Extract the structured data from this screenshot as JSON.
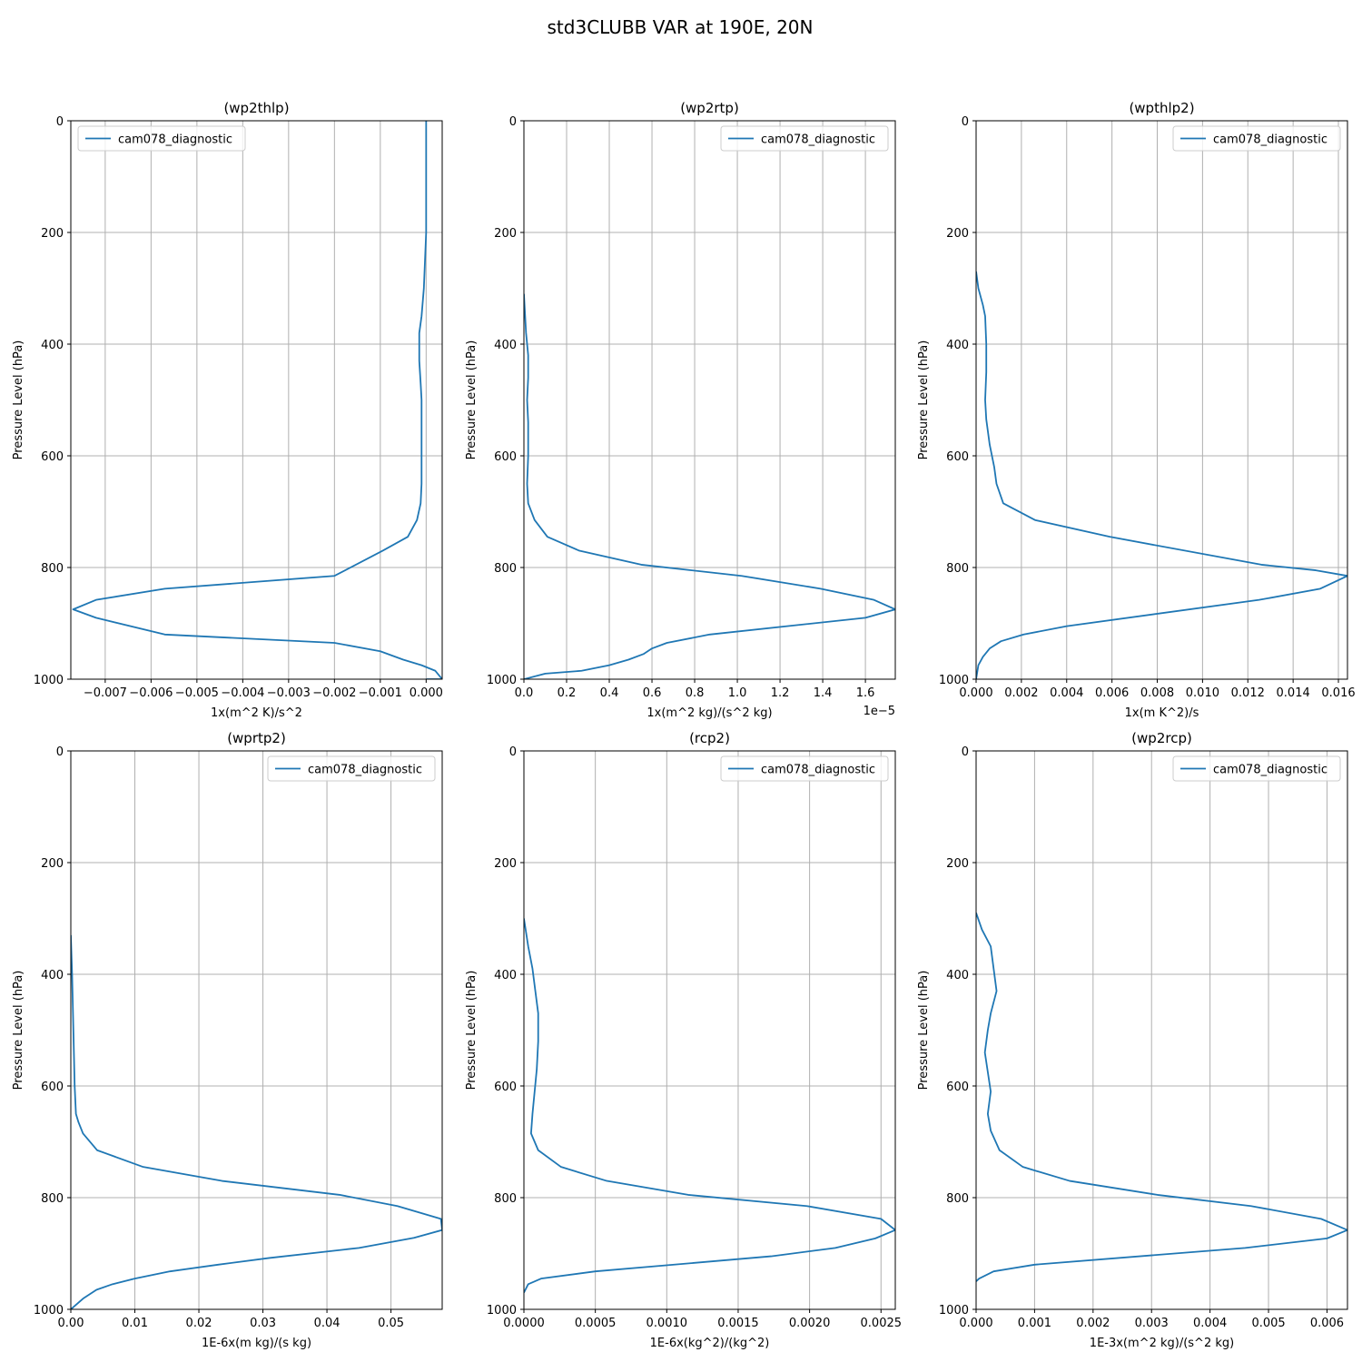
{
  "figure": {
    "title": "std3CLUBB VAR at 190E, 20N"
  },
  "colors": {
    "line": "#1f77b4",
    "grid": "#b0b0b0",
    "axes": "#000000"
  },
  "chart_data": [
    {
      "type": "line",
      "title": "(wp2thlp)",
      "xlabel": "1x(m^2 K)/s^2",
      "ylabel": "Pressure Level (hPa)",
      "xlim": [
        -0.00775,
        0.00035
      ],
      "ylim": [
        1000,
        0
      ],
      "xticks": [
        -0.007,
        -0.006,
        -0.005,
        -0.004,
        -0.003,
        -0.002,
        -0.001,
        0.0
      ],
      "xtick_labels": [
        "−0.007",
        "−0.006",
        "−0.005",
        "−0.004",
        "−0.003",
        "−0.002",
        "−0.001",
        "0.000"
      ],
      "yticks": [
        0,
        200,
        400,
        600,
        800,
        1000
      ],
      "ytick_labels": [
        "0",
        "200",
        "400",
        "600",
        "800",
        "1000"
      ],
      "offset_text": "",
      "grid": true,
      "legend_loc": "upper left",
      "series": [
        {
          "name": "cam078_diagnostic",
          "x": [
            0.0,
            0.0,
            0.0,
            0.0,
            0.0,
            -5e-05,
            -0.0001,
            -0.00015,
            -0.00015,
            -0.00012,
            -0.0001,
            -0.0001,
            -0.0001,
            -0.0001,
            -0.00012,
            -0.0002,
            -0.0004,
            -0.00095,
            -0.002,
            -0.0057,
            -0.0072,
            -0.0077,
            -0.0072,
            -0.0057,
            -0.002,
            -0.001,
            -0.0005,
            -0.0001,
            0.0002,
            0.00035,
            0.0
          ],
          "y": [
            0,
            50,
            100,
            150,
            200,
            300,
            350,
            380,
            430,
            470,
            500,
            540,
            600,
            650,
            685,
            715,
            745,
            770,
            815,
            838,
            858,
            875,
            890,
            920,
            935,
            950,
            965,
            975,
            985,
            1000,
            1000
          ]
        }
      ]
    },
    {
      "type": "line",
      "title": "(wp2rtp)",
      "xlabel": "1x(m^2 kg)/(s^2 kg)",
      "ylabel": "Pressure Level (hPa)",
      "xlim": [
        0.0,
        1.74
      ],
      "ylim": [
        1000,
        0
      ],
      "xticks": [
        0.0,
        0.2,
        0.4,
        0.6,
        0.8,
        1.0,
        1.2,
        1.4,
        1.6
      ],
      "xtick_labels": [
        "0.0",
        "0.2",
        "0.4",
        "0.6",
        "0.8",
        "1.0",
        "1.2",
        "1.4",
        "1.6"
      ],
      "yticks": [
        0,
        200,
        400,
        600,
        800,
        1000
      ],
      "ytick_labels": [
        "0",
        "200",
        "400",
        "600",
        "800",
        "1000"
      ],
      "offset_text": "1e−5",
      "grid": true,
      "legend_loc": "upper right",
      "series": [
        {
          "name": "cam078_diagnostic",
          "x": [
            0.0,
            0.01,
            0.02,
            0.02,
            0.015,
            0.02,
            0.02,
            0.015,
            0.02,
            0.05,
            0.11,
            0.26,
            0.55,
            1.02,
            1.39,
            1.64,
            1.74,
            1.6,
            0.87,
            0.67,
            0.6,
            0.56,
            0.49,
            0.4,
            0.27,
            0.1,
            0.0
          ],
          "y": [
            310,
            380,
            420,
            460,
            500,
            540,
            600,
            650,
            685,
            715,
            745,
            770,
            795,
            815,
            838,
            858,
            875,
            890,
            920,
            935,
            945,
            955,
            965,
            975,
            985,
            990,
            1000
          ]
        }
      ]
    },
    {
      "type": "line",
      "title": "(wpthlp2)",
      "xlabel": "1x(m K^2)/s",
      "ylabel": "Pressure Level (hPa)",
      "xlim": [
        0.0,
        0.0164
      ],
      "ylim": [
        1000,
        0
      ],
      "xticks": [
        0.0,
        0.002,
        0.004,
        0.006,
        0.008,
        0.01,
        0.012,
        0.014,
        0.016
      ],
      "xtick_labels": [
        "0.000",
        "0.002",
        "0.004",
        "0.006",
        "0.008",
        "0.010",
        "0.012",
        "0.014",
        "0.016"
      ],
      "yticks": [
        0,
        200,
        400,
        600,
        800,
        1000
      ],
      "ytick_labels": [
        "0",
        "200",
        "400",
        "600",
        "800",
        "1000"
      ],
      "offset_text": "",
      "grid": true,
      "legend_loc": "upper right",
      "series": [
        {
          "name": "cam078_diagnostic",
          "x": [
            0.0,
            0.0001,
            0.0003,
            0.0004,
            0.00045,
            0.00045,
            0.0004,
            0.00045,
            0.0006,
            0.0008,
            0.0009,
            0.0012,
            0.0026,
            0.0059,
            0.0126,
            0.015,
            0.0164,
            0.0152,
            0.0125,
            0.004,
            0.0021,
            0.0011,
            0.0006,
            0.0003,
            0.0001,
            0.0
          ],
          "y": [
            270,
            300,
            330,
            350,
            400,
            450,
            500,
            535,
            580,
            620,
            650,
            685,
            715,
            745,
            795,
            805,
            815,
            838,
            858,
            905,
            920,
            932,
            945,
            960,
            975,
            1000
          ]
        }
      ]
    },
    {
      "type": "line",
      "title": "(wprtp2)",
      "xlabel": "1E-6x(m kg)/(s kg)",
      "ylabel": "Pressure Level (hPa)",
      "xlim": [
        0.0,
        0.058
      ],
      "ylim": [
        1000,
        0
      ],
      "xticks": [
        0.0,
        0.01,
        0.02,
        0.03,
        0.04,
        0.05
      ],
      "xtick_labels": [
        "0.00",
        "0.01",
        "0.02",
        "0.03",
        "0.04",
        "0.05"
      ],
      "yticks": [
        0,
        200,
        400,
        600,
        800,
        1000
      ],
      "ytick_labels": [
        "0",
        "200",
        "400",
        "600",
        "800",
        "1000"
      ],
      "offset_text": "",
      "grid": true,
      "legend_loc": "upper right",
      "series": [
        {
          "name": "cam078_diagnostic",
          "x": [
            0.0,
            0.0002,
            0.0004,
            0.0006,
            0.0008,
            0.0012,
            0.0019,
            0.0041,
            0.0113,
            0.0236,
            0.042,
            0.051,
            0.0578,
            0.058,
            0.0536,
            0.045,
            0.031,
            0.023,
            0.0155,
            0.01,
            0.0065,
            0.004,
            0.002,
            0.0
          ],
          "y": [
            330,
            400,
            500,
            600,
            650,
            665,
            685,
            715,
            745,
            770,
            795,
            815,
            838,
            858,
            872,
            890,
            908,
            920,
            932,
            945,
            955,
            965,
            980,
            1000
          ]
        }
      ]
    },
    {
      "type": "line",
      "title": "(rcp2)",
      "xlabel": "1E-6x(kg^2)/(kg^2)",
      "ylabel": "Pressure Level (hPa)",
      "xlim": [
        0.0,
        0.0026
      ],
      "ylim": [
        1000,
        0
      ],
      "xticks": [
        0.0,
        0.0005,
        0.001,
        0.0015,
        0.002,
        0.0025
      ],
      "xtick_labels": [
        "0.0000",
        "0.0005",
        "0.0010",
        "0.0015",
        "0.0020",
        "0.0025"
      ],
      "yticks": [
        0,
        200,
        400,
        600,
        800,
        1000
      ],
      "ytick_labels": [
        "0",
        "200",
        "400",
        "600",
        "800",
        "1000"
      ],
      "offset_text": "",
      "grid": true,
      "legend_loc": "upper right",
      "series": [
        {
          "name": "cam078_diagnostic",
          "x": [
            0.0,
            3e-05,
            6e-05,
            8e-05,
            0.0001,
            0.0001,
            9e-05,
            6e-05,
            5e-05,
            0.0001,
            0.00026,
            0.00058,
            0.00115,
            0.00198,
            0.0025,
            0.0026,
            0.00246,
            0.00218,
            0.00173,
            0.0005,
            0.00012,
            3e-05,
            0.0
          ],
          "y": [
            300,
            350,
            390,
            430,
            470,
            520,
            570,
            650,
            685,
            715,
            745,
            770,
            795,
            815,
            838,
            858,
            873,
            890,
            905,
            932,
            945,
            955,
            970
          ]
        }
      ]
    },
    {
      "type": "line",
      "title": "(wp2rcp)",
      "xlabel": "1E-3x(m^2 kg)/(s^2 kg)",
      "ylabel": "Pressure Level (hPa)",
      "xlim": [
        0.0,
        0.00635
      ],
      "ylim": [
        1000,
        0
      ],
      "xticks": [
        0.0,
        0.001,
        0.002,
        0.003,
        0.004,
        0.005,
        0.006
      ],
      "xtick_labels": [
        "0.000",
        "0.001",
        "0.002",
        "0.003",
        "0.004",
        "0.005",
        "0.006"
      ],
      "yticks": [
        0,
        200,
        400,
        600,
        800,
        1000
      ],
      "ytick_labels": [
        "0",
        "200",
        "400",
        "600",
        "800",
        "1000"
      ],
      "offset_text": "",
      "grid": true,
      "legend_loc": "upper right",
      "series": [
        {
          "name": "cam078_diagnostic",
          "x": [
            0.0,
            0.0001,
            0.00025,
            0.00035,
            0.00025,
            0.0002,
            0.00015,
            0.00025,
            0.0002,
            0.00025,
            0.0004,
            0.0008,
            0.0016,
            0.0031,
            0.0047,
            0.0059,
            0.00635,
            0.006,
            0.0046,
            0.001,
            0.0003,
            5e-05,
            0.0
          ],
          "y": [
            290,
            320,
            350,
            430,
            470,
            500,
            540,
            610,
            650,
            680,
            715,
            745,
            770,
            795,
            815,
            838,
            858,
            873,
            890,
            920,
            932,
            945,
            950
          ]
        }
      ]
    }
  ]
}
